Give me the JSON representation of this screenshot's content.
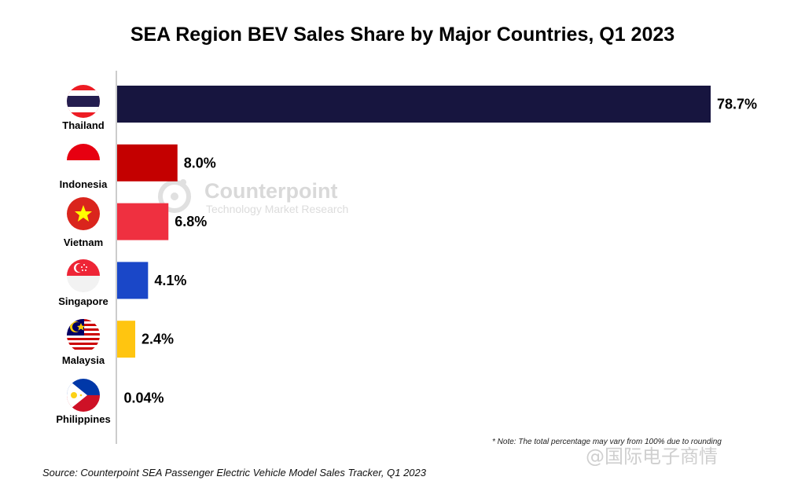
{
  "chart_data": {
    "type": "bar",
    "orientation": "horizontal",
    "title": "SEA Region BEV Sales Share by Major Countries, Q1 2023",
    "categories": [
      "Thailand",
      "Indonesia",
      "Vietnam",
      "Singapore",
      "Malaysia",
      "Philippines"
    ],
    "values": [
      78.7,
      8.0,
      6.8,
      4.1,
      2.4,
      0.04
    ],
    "value_labels": [
      "78.7%",
      "8.0%",
      "6.8%",
      "4.1%",
      "2.4%",
      "0.04%"
    ],
    "colors": [
      "#17153f",
      "#c40000",
      "#ef3040",
      "#1a47c8",
      "#ffc510",
      "#ffffff"
    ],
    "xlim": [
      0,
      80
    ],
    "grid": false,
    "legend": "none",
    "note": "* Note: The total percentage may vary from 100% due to rounding",
    "source": "Source: Counterpoint SEA Passenger Electric Vehicle Model Sales Tracker, Q1 2023"
  },
  "watermark": {
    "brand": "Counterpoint",
    "tagline": "Technology Market Research",
    "corner": "@国际电子商情"
  },
  "flags": [
    "thailand-flag-icon",
    "indonesia-flag-icon",
    "vietnam-flag-icon",
    "singapore-flag-icon",
    "malaysia-flag-icon",
    "philippines-flag-icon"
  ]
}
